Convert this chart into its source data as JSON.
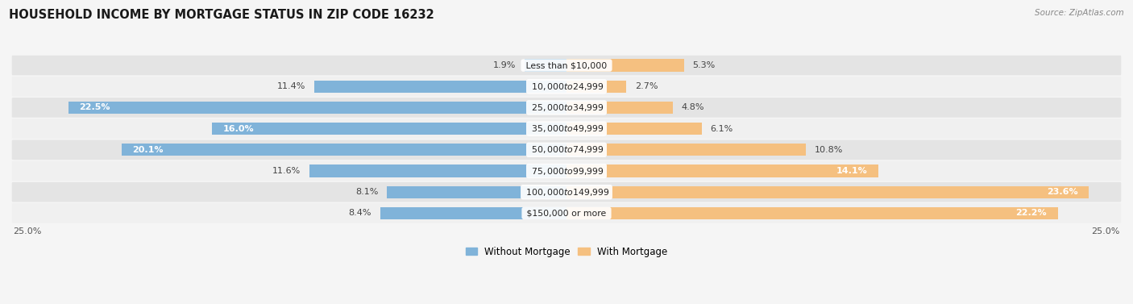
{
  "title": "HOUSEHOLD INCOME BY MORTGAGE STATUS IN ZIP CODE 16232",
  "source": "Source: ZipAtlas.com",
  "categories": [
    "Less than $10,000",
    "$10,000 to $24,999",
    "$25,000 to $34,999",
    "$35,000 to $49,999",
    "$50,000 to $74,999",
    "$75,000 to $99,999",
    "$100,000 to $149,999",
    "$150,000 or more"
  ],
  "without_mortgage": [
    1.9,
    11.4,
    22.5,
    16.0,
    20.1,
    11.6,
    8.1,
    8.4
  ],
  "with_mortgage": [
    5.3,
    2.7,
    4.8,
    6.1,
    10.8,
    14.1,
    23.6,
    22.2
  ],
  "color_without": "#80b3d9",
  "color_with": "#f5c080",
  "row_bg_light": "#f0f0f0",
  "row_bg_dark": "#e4e4e4",
  "fig_bg": "#f5f5f5",
  "xlim": 25.0,
  "legend_labels": [
    "Without Mortgage",
    "With Mortgage"
  ],
  "axis_label_left": "25.0%",
  "axis_label_right": "25.0%",
  "label_inside_threshold": 14.0,
  "label_fontsize": 8.0,
  "cat_fontsize": 7.8,
  "title_fontsize": 10.5,
  "source_fontsize": 7.5
}
